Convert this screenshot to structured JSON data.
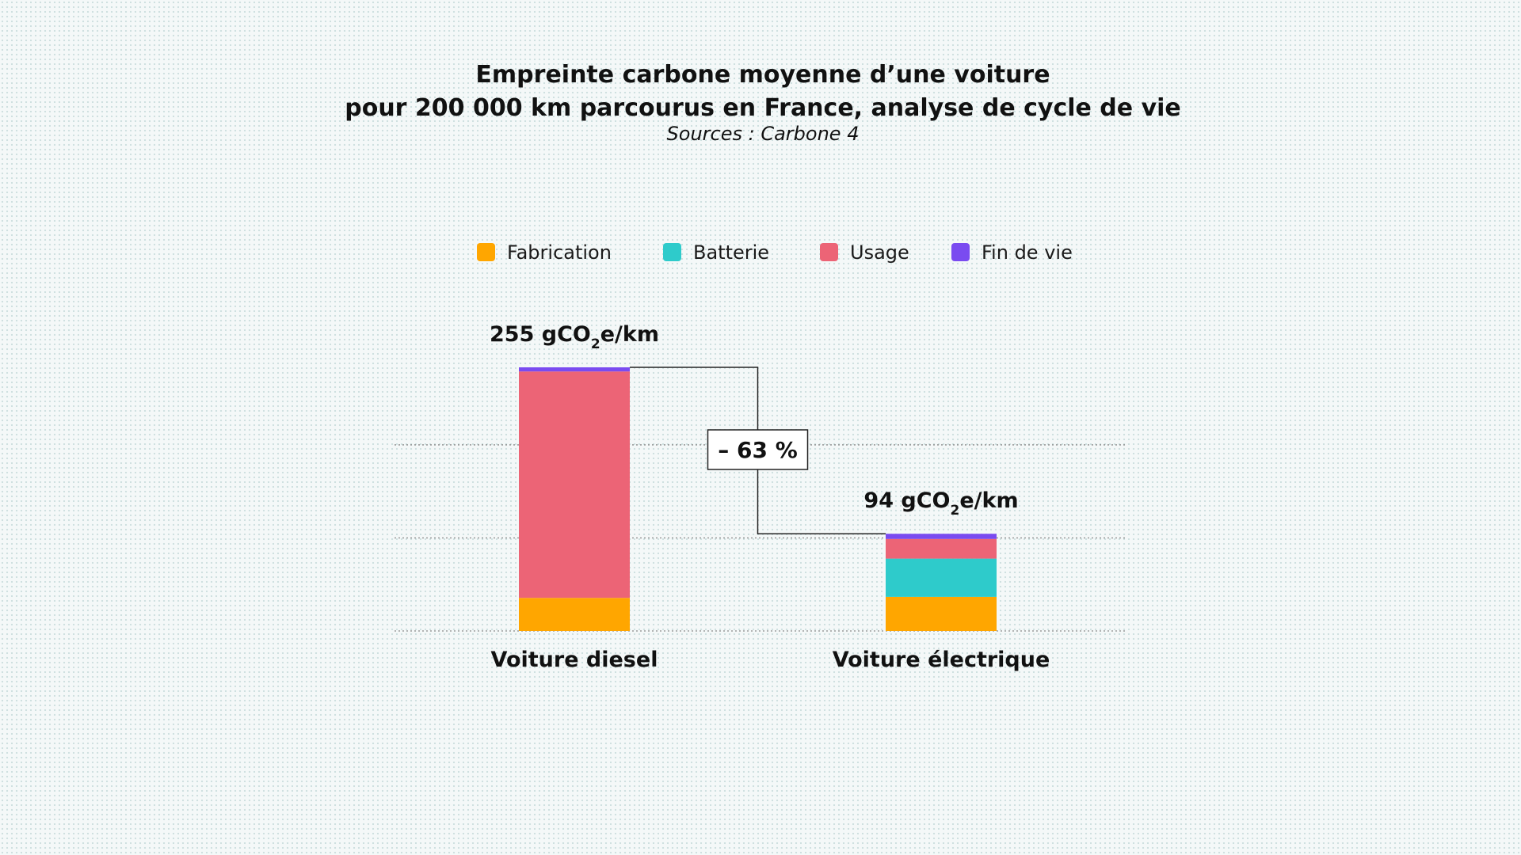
{
  "chart_data": {
    "type": "bar",
    "stacked": true,
    "title": [
      "Empreinte carbone moyenne d’une voiture",
      "pour 200 000 km parcourus en France, analyse de cycle de vie"
    ],
    "subtitle": "Sources : Carbone 4",
    "categories": [
      "Voiture diesel",
      "Voiture électrique"
    ],
    "series": [
      {
        "name": "Fabrication",
        "color": "#FFA600",
        "values": [
          32,
          33
        ]
      },
      {
        "name": "Batterie",
        "color": "#2ECBCB",
        "values": [
          0,
          37
        ]
      },
      {
        "name": "Usage",
        "color": "#EC6476",
        "values": [
          219,
          19
        ]
      },
      {
        "name": "Fin de vie",
        "color": "#7A4BF0",
        "values": [
          4,
          5
        ]
      }
    ],
    "totals": [
      {
        "value": "255",
        "unit_pre": "gCO",
        "unit_sub": "2",
        "unit_post": "e/km"
      },
      {
        "value": "94",
        "unit_pre": "gCO",
        "unit_sub": "2",
        "unit_post": "e/km"
      }
    ],
    "difference_label": "– 63 %",
    "ylim": [
      0,
      255
    ],
    "gridlines": [
      0,
      90,
      180
    ],
    "legend_position": "top-center",
    "grid": true
  }
}
